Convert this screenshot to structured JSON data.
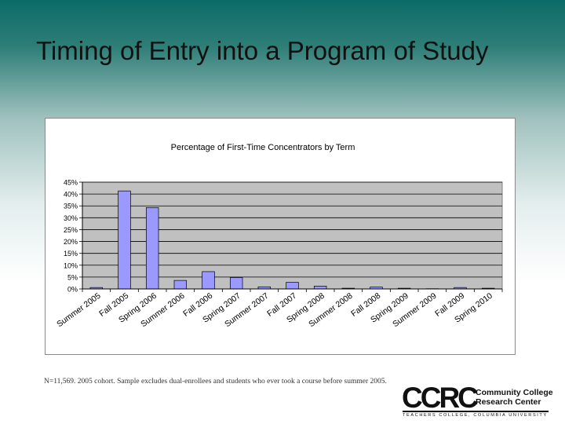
{
  "slide": {
    "title": "Timing of Entry into a Program of Study",
    "footnote": "N=11,569.  2005 cohort.  Sample excludes dual-enrollees and students who ever took a course before summer 2005."
  },
  "logo": {
    "mark": "CCRC",
    "name_line1": "Community College",
    "name_line2": "Research Center",
    "tagline": "TEACHERS COLLEGE, COLUMBIA UNIVERSITY"
  },
  "colors": {
    "plot_bg": "#c0c0c0",
    "bar_fill": "#9999ff",
    "bar_stroke": "#000000"
  },
  "chart_data": {
    "type": "bar",
    "title": "Percentage of First-Time Concentrators by Term",
    "xlabel": "",
    "ylabel": "",
    "ylim": [
      0,
      45
    ],
    "yticks": [
      0,
      5,
      10,
      15,
      20,
      25,
      30,
      35,
      40,
      45
    ],
    "ytick_labels": [
      "0%",
      "5%",
      "10%",
      "15%",
      "20%",
      "25%",
      "30%",
      "35%",
      "40%",
      "45%"
    ],
    "grid": true,
    "categories": [
      "Summer 2005",
      "Fall 2005",
      "Spring 2006",
      "Summer 2006",
      "Fall 2006",
      "Spring 2007",
      "Summer 2007",
      "Fall 2007",
      "Spring 2008",
      "Summer 2008",
      "Fall 2008",
      "Spring 2009",
      "Summer 2009",
      "Fall 2009",
      "Spring 2010"
    ],
    "values": [
      0.6,
      41.3,
      34.3,
      3.6,
      7.3,
      4.8,
      0.9,
      2.8,
      1.2,
      0.3,
      0.8,
      0.3,
      0.1,
      0.6,
      0.3
    ]
  }
}
